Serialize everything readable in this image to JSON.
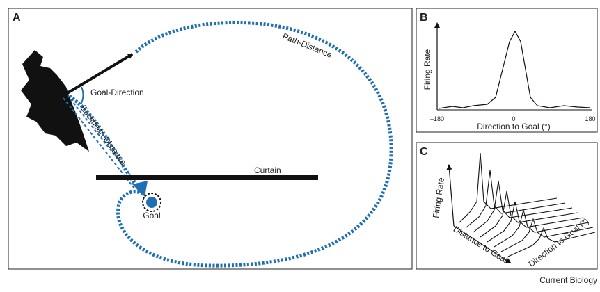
{
  "panels": {
    "a": {
      "letter": "A",
      "path_distance": "Path-Distance",
      "goal_direction": "Goal-Direction",
      "euclidean_distance": "Euclidean Distance",
      "curtain": "Curtain",
      "goal": "Goal"
    },
    "b": {
      "letter": "B",
      "y_label": "Firing Rate",
      "x_label": "Direction to Goal (°)",
      "xticks": [
        "–180",
        "0",
        "180"
      ]
    },
    "c": {
      "letter": "C",
      "y_label": "Firing Rate",
      "distance_label": "Distance to Goal",
      "direction_label": "Direction to Goal (°)"
    }
  },
  "footer": {
    "journal": "Current Biology"
  }
}
